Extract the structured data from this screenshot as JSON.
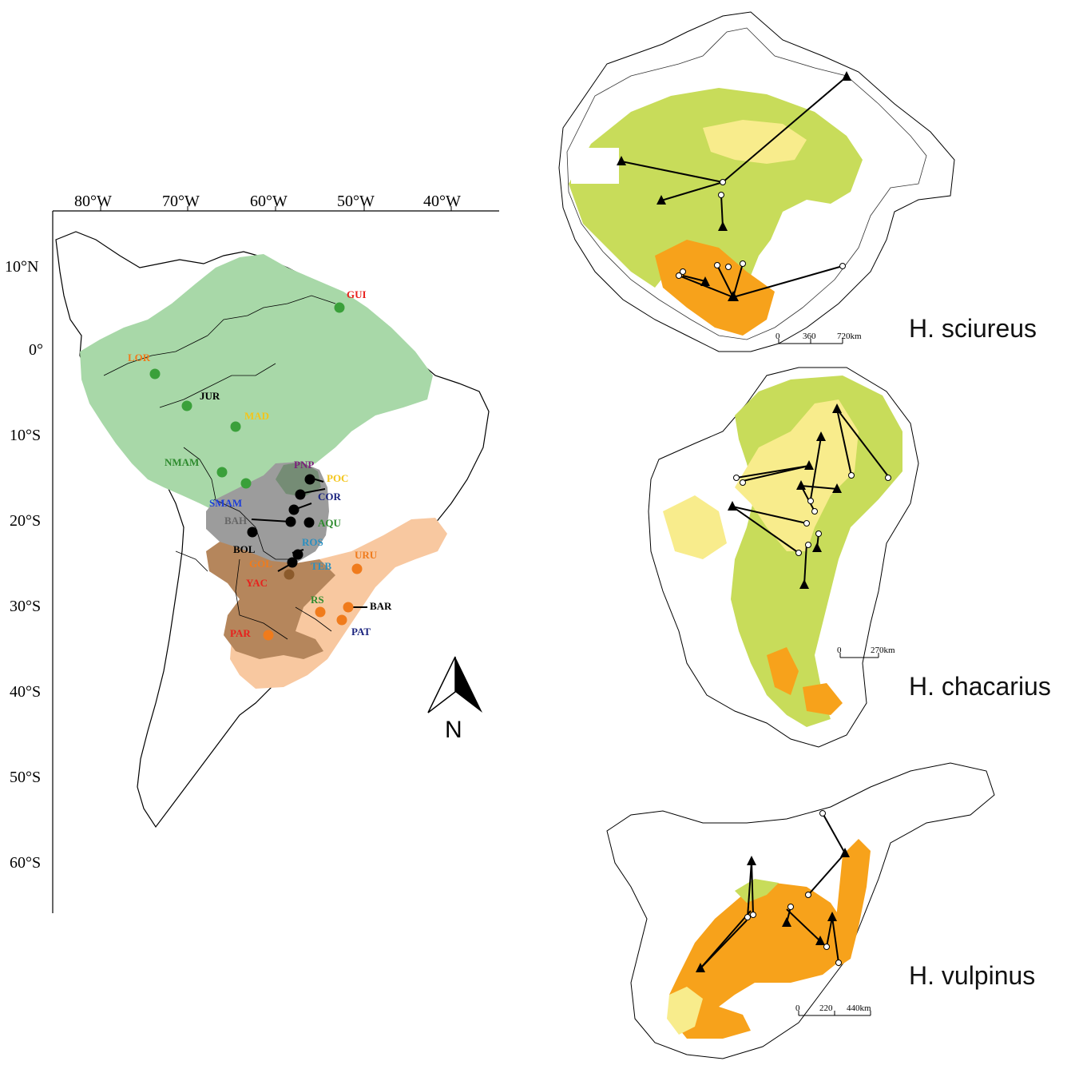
{
  "main_map": {
    "lon_labels": [
      "80°W",
      "70°W",
      "60°W",
      "50°W",
      "40°W"
    ],
    "lat_labels": [
      "10°N",
      "0°",
      "10°S",
      "20°S",
      "30°S",
      "40°S",
      "50°S",
      "60°S"
    ],
    "north_label": "N",
    "regions": [
      {
        "name": "green",
        "color": "#a8d8a8"
      },
      {
        "name": "grey",
        "color": "#9c9c9c"
      },
      {
        "name": "brown",
        "color": "#b5865c"
      },
      {
        "name": "peach",
        "color": "#f8c8a0"
      }
    ],
    "sites": [
      {
        "label": "GUI",
        "color": "#e8211d"
      },
      {
        "label": "LOR",
        "color": "#f07b1c"
      },
      {
        "label": "JUR",
        "color": "#000000"
      },
      {
        "label": "MAD",
        "color": "#f3c51a"
      },
      {
        "label": "NMAM",
        "color": "#2e8b2e"
      },
      {
        "label": "PNP",
        "color": "#7b1f7b"
      },
      {
        "label": "POC",
        "color": "#f3c51a"
      },
      {
        "label": "COR",
        "color": "#1a237e"
      },
      {
        "label": "SMAM",
        "color": "#1e3fd8"
      },
      {
        "label": "BAH",
        "color": "#666666"
      },
      {
        "label": "AQU",
        "color": "#2e8b2e"
      },
      {
        "label": "BOL",
        "color": "#000000"
      },
      {
        "label": "ROS",
        "color": "#2a8fc0"
      },
      {
        "label": "URU",
        "color": "#f07b1c"
      },
      {
        "label": "GOL",
        "color": "#f07b1c"
      },
      {
        "label": "TEB",
        "color": "#2a8fc0"
      },
      {
        "label": "YAC",
        "color": "#e8211d"
      },
      {
        "label": "RS",
        "color": "#2e8b2e"
      },
      {
        "label": "BAR",
        "color": "#000000"
      },
      {
        "label": "PAT",
        "color": "#1a237e"
      },
      {
        "label": "PAR",
        "color": "#e8211d"
      }
    ]
  },
  "panels": [
    {
      "species": "H. sciureus",
      "scale": [
        "0",
        "360",
        "720km"
      ]
    },
    {
      "species": "H. chacarius",
      "scale": [
        "0",
        "270km"
      ]
    },
    {
      "species": "H. vulpinus",
      "scale": [
        "0",
        "220",
        "440km"
      ]
    }
  ],
  "legend_colors": {
    "low": "#c8dc5a",
    "mid": "#f8ec8c",
    "high": "#f7a21b"
  }
}
